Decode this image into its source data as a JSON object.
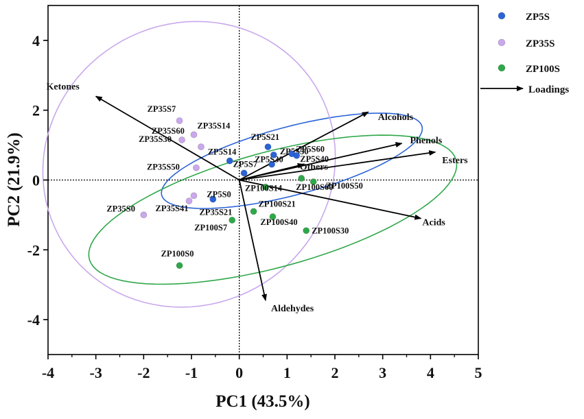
{
  "chart_data": {
    "type": "scatter",
    "xlabel": "PC1 (43.5%)",
    "ylabel": "PC2 (21.9%)",
    "xlim": [
      -4,
      5
    ],
    "ylim": [
      -5,
      5
    ],
    "x_ticks": [
      "-4",
      "-3",
      "-2",
      "-1",
      "0",
      "1",
      "2",
      "3",
      "4",
      "5"
    ],
    "y_ticks": [
      "-4",
      "-2",
      "0",
      "2",
      "4"
    ],
    "x_tick_values": [
      -4,
      -3,
      -2,
      -1,
      0,
      1,
      2,
      3,
      4,
      5
    ],
    "y_tick_values": [
      -4,
      -2,
      0,
      2,
      4
    ],
    "grid": false,
    "zero_lines": "dotted",
    "legend_position": "outside-right",
    "series": [
      {
        "name": "ZP5S",
        "color": "#2a63d6",
        "ellipse": {
          "cx": 1.1,
          "cy": 0.55,
          "rx": 2.9,
          "ry": 0.95,
          "angle_deg": 21
        },
        "points": [
          {
            "label": "ZP5S0",
            "x": -0.55,
            "y": -0.55
          },
          {
            "label": "ZP5S7",
            "x": 0.1,
            "y": 0.2
          },
          {
            "label": "ZP5S14",
            "x": -0.2,
            "y": 0.55
          },
          {
            "label": "ZP5S21",
            "x": 0.6,
            "y": 0.95
          },
          {
            "label": "ZP5S30",
            "x": 0.68,
            "y": 0.45
          },
          {
            "label": "ZP5S50",
            "x": 0.72,
            "y": 0.72
          },
          {
            "label": "ZP5S60",
            "x": 1.1,
            "y": 0.75
          },
          {
            "label": "ZP5S40",
            "x": 1.2,
            "y": 0.7
          }
        ]
      },
      {
        "name": "ZP35S",
        "color": "#c9a8ec",
        "ellipse": {
          "cx": -1.05,
          "cy": 0.45,
          "rx": 3.05,
          "ry": 4.1,
          "angle_deg": -5
        },
        "points": [
          {
            "label": "ZP35S0",
            "x": -2.0,
            "y": -1.0
          },
          {
            "label": "ZP35S7",
            "x": -1.25,
            "y": 1.7
          },
          {
            "label": "ZP35S14",
            "x": -0.95,
            "y": 1.3
          },
          {
            "label": "ZP35S21",
            "x": -0.95,
            "y": -0.45
          },
          {
            "label": "ZP35S30",
            "x": -1.2,
            "y": 1.15
          },
          {
            "label": "ZP35S41",
            "x": -1.05,
            "y": -0.6
          },
          {
            "label": "ZP35S50",
            "x": -0.9,
            "y": 0.35
          },
          {
            "label": "ZP35S60",
            "x": -0.8,
            "y": 0.95
          }
        ]
      },
      {
        "name": "ZP100S",
        "color": "#2fa84a",
        "ellipse": {
          "cx": 0.7,
          "cy": -0.85,
          "rx": 4.1,
          "ry": 1.6,
          "angle_deg": 22
        },
        "points": [
          {
            "label": "ZP100S0",
            "x": -1.25,
            "y": -2.45
          },
          {
            "label": "ZP100S7",
            "x": -0.15,
            "y": -1.15
          },
          {
            "label": "ZP100S14",
            "x": 0.55,
            "y": -0.2
          },
          {
            "label": "ZP100S21",
            "x": 0.3,
            "y": -0.9
          },
          {
            "label": "ZP100S30",
            "x": 1.4,
            "y": -1.45
          },
          {
            "label": "ZP100S40",
            "x": 0.7,
            "y": -1.05
          },
          {
            "label": "ZP100S50",
            "x": 1.55,
            "y": -0.05
          },
          {
            "label": "ZP100S60",
            "x": 1.3,
            "y": 0.05
          }
        ]
      }
    ],
    "loadings": {
      "name": "Loadings",
      "color": "#000000",
      "vectors": [
        {
          "label": "Ketones",
          "x": -3.0,
          "y": 2.4
        },
        {
          "label": "Alcohols",
          "x": 2.7,
          "y": 1.95
        },
        {
          "label": "Phenols",
          "x": 3.4,
          "y": 1.05
        },
        {
          "label": "Esters",
          "x": 4.1,
          "y": 0.8
        },
        {
          "label": "Others",
          "x": 1.35,
          "y": 0.45
        },
        {
          "label": "Acids",
          "x": 3.8,
          "y": -1.1
        },
        {
          "label": "Aldehydes",
          "x": 0.55,
          "y": -3.45
        }
      ]
    }
  }
}
